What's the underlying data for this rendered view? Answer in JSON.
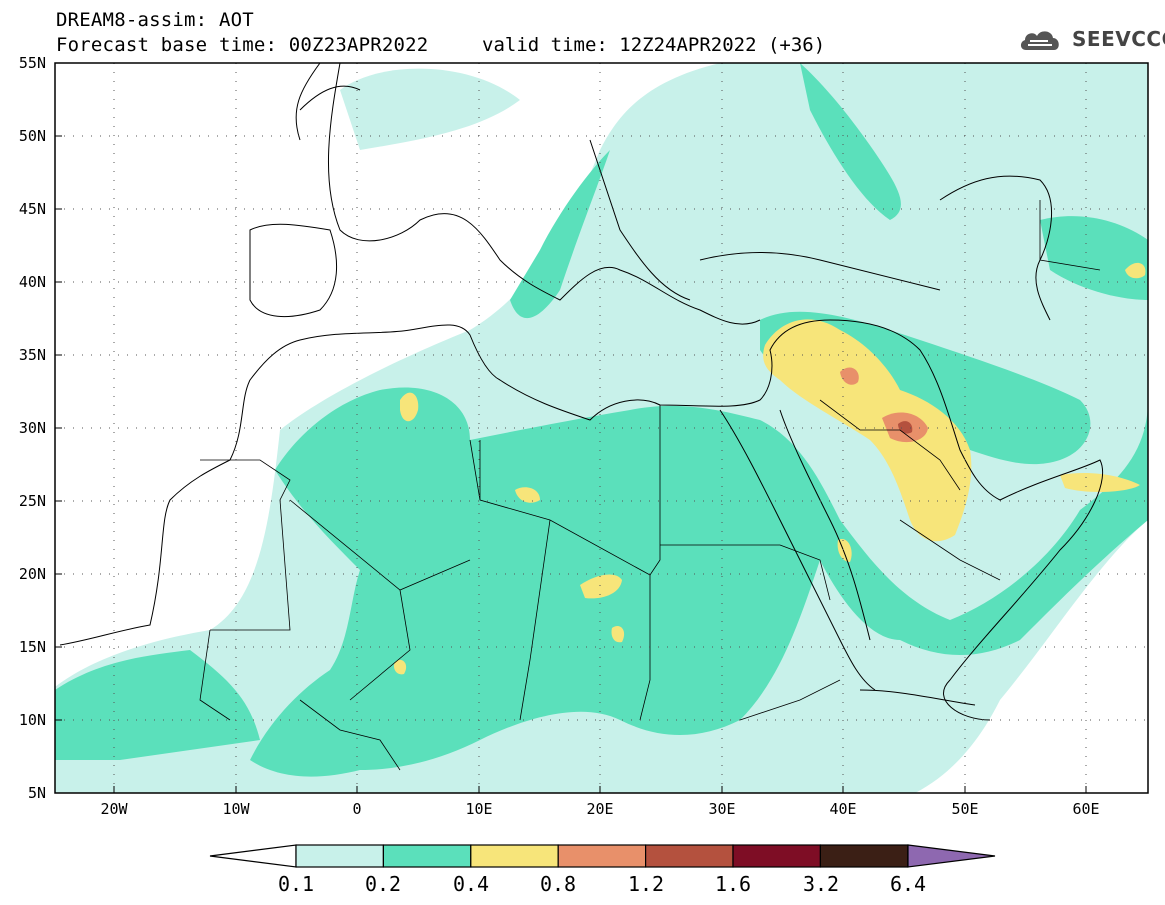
{
  "header": {
    "title_line1": "DREAM8-assim: AOT",
    "base_time": "Forecast base time: 00Z23APR2022",
    "valid_time": "valid time: 12Z24APR2022 (+36)"
  },
  "logo": {
    "text": "SEEVCCC",
    "icon": "cloud-icon"
  },
  "map": {
    "lat_labels": [
      "55N",
      "50N",
      "45N",
      "40N",
      "35N",
      "30N",
      "25N",
      "20N",
      "15N",
      "10N",
      "5N"
    ],
    "lon_labels": [
      "20W",
      "10W",
      "0",
      "10E",
      "20E",
      "30E",
      "40E",
      "50E",
      "60E"
    ],
    "lat_range": [
      5,
      55
    ],
    "lon_range": [
      -25,
      65
    ],
    "grid": "dotted",
    "field": "Aerosol Optical Thickness"
  },
  "colorbar": {
    "labels": [
      "0.1",
      "0.2",
      "0.4",
      "0.8",
      "1.2",
      "1.6",
      "3.2",
      "6.4"
    ],
    "colors": [
      "#c8f1ea",
      "#5be0bb",
      "#f7e57a",
      "#e8906a",
      "#b4513e",
      "#7e0d25",
      "#3b1f15",
      "#8e68b0"
    ]
  }
}
